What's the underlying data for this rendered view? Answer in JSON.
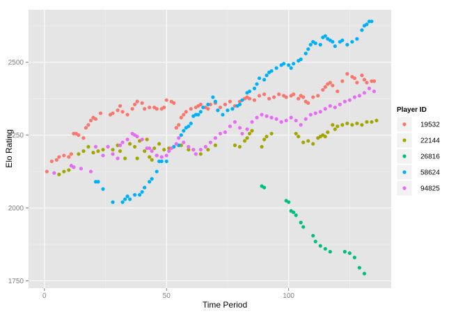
{
  "chart_data": {
    "type": "scatter",
    "title": "",
    "xlabel": "Time Period",
    "ylabel": "Elo Rating",
    "xlim": [
      -6.5,
      142
    ],
    "ylim": [
      1725,
      2680
    ],
    "xticks": [
      0,
      50,
      100
    ],
    "yticks": [
      1750,
      2000,
      2250,
      2500
    ],
    "grid": true,
    "legend": {
      "title": "Player ID",
      "position": "right"
    },
    "series": [
      {
        "name": "19532",
        "color": "#F8766D",
        "points": [
          [
            1,
            2125
          ],
          [
            3,
            2160
          ],
          [
            5,
            2165
          ],
          [
            6,
            2175
          ],
          [
            8,
            2180
          ],
          [
            10,
            2175
          ],
          [
            11,
            2185
          ],
          [
            12,
            2255
          ],
          [
            13,
            2255
          ],
          [
            14,
            2250
          ],
          [
            16,
            2240
          ],
          [
            17,
            2275
          ],
          [
            18,
            2285
          ],
          [
            19,
            2300
          ],
          [
            20,
            2310
          ],
          [
            21,
            2305
          ],
          [
            23,
            2325
          ],
          [
            27,
            2320
          ],
          [
            28,
            2325
          ],
          [
            30,
            2335
          ],
          [
            31,
            2350
          ],
          [
            32,
            2330
          ],
          [
            34,
            2320
          ],
          [
            36,
            2340
          ],
          [
            37,
            2355
          ],
          [
            38,
            2365
          ],
          [
            40,
            2360
          ],
          [
            41,
            2340
          ],
          [
            43,
            2345
          ],
          [
            45,
            2345
          ],
          [
            46,
            2340
          ],
          [
            48,
            2340
          ],
          [
            49,
            2345
          ],
          [
            50,
            2370
          ],
          [
            52,
            2365
          ],
          [
            53,
            2360
          ],
          [
            54,
            2275
          ],
          [
            55,
            2285
          ],
          [
            56,
            2310
          ],
          [
            57,
            2320
          ],
          [
            58,
            2330
          ],
          [
            60,
            2340
          ],
          [
            62,
            2345
          ],
          [
            63,
            2350
          ],
          [
            64,
            2355
          ],
          [
            66,
            2345
          ],
          [
            67,
            2340
          ],
          [
            68,
            2355
          ],
          [
            70,
            2360
          ],
          [
            72,
            2345
          ],
          [
            74,
            2355
          ],
          [
            76,
            2365
          ],
          [
            78,
            2350
          ],
          [
            80,
            2365
          ],
          [
            82,
            2375
          ],
          [
            83,
            2380
          ],
          [
            84,
            2375
          ],
          [
            86,
            2370
          ],
          [
            88,
            2385
          ],
          [
            90,
            2390
          ],
          [
            92,
            2375
          ],
          [
            94,
            2380
          ],
          [
            96,
            2390
          ],
          [
            98,
            2385
          ],
          [
            99,
            2380
          ],
          [
            101,
            2385
          ],
          [
            102,
            2390
          ],
          [
            104,
            2375
          ],
          [
            105,
            2385
          ],
          [
            106,
            2380
          ],
          [
            107,
            2365
          ],
          [
            108,
            2360
          ],
          [
            110,
            2380
          ],
          [
            112,
            2385
          ],
          [
            114,
            2405
          ],
          [
            115,
            2415
          ],
          [
            116,
            2425
          ],
          [
            117,
            2430
          ],
          [
            118,
            2420
          ],
          [
            120,
            2400
          ],
          [
            122,
            2435
          ],
          [
            124,
            2460
          ],
          [
            126,
            2450
          ],
          [
            127,
            2445
          ],
          [
            128,
            2430
          ],
          [
            130,
            2455
          ],
          [
            131,
            2440
          ],
          [
            132,
            2430
          ],
          [
            134,
            2435
          ],
          [
            135,
            2435
          ]
        ]
      },
      {
        "name": "22144",
        "color": "#A3A500",
        "points": [
          [
            6,
            2115
          ],
          [
            8,
            2125
          ],
          [
            10,
            2130
          ],
          [
            12,
            2140
          ],
          [
            14,
            2185
          ],
          [
            16,
            2195
          ],
          [
            18,
            2210
          ],
          [
            20,
            2190
          ],
          [
            22,
            2195
          ],
          [
            24,
            2200
          ],
          [
            26,
            2210
          ],
          [
            28,
            2200
          ],
          [
            30,
            2215
          ],
          [
            31,
            2195
          ],
          [
            33,
            2170
          ],
          [
            35,
            2220
          ],
          [
            37,
            2210
          ],
          [
            38,
            2170
          ],
          [
            39,
            2230
          ],
          [
            41,
            2195
          ],
          [
            42,
            2235
          ],
          [
            43,
            2175
          ],
          [
            44,
            2165
          ],
          [
            45,
            2205
          ],
          [
            46,
            2180
          ],
          [
            47,
            2220
          ],
          [
            49,
            2200
          ],
          [
            51,
            2205
          ],
          [
            56,
            2215
          ],
          [
            59,
            2200
          ],
          [
            61,
            2200
          ],
          [
            64,
            2185
          ],
          [
            67,
            2200
          ],
          [
            70,
            2215
          ],
          [
            78,
            2215
          ],
          [
            80,
            2210
          ],
          [
            82,
            2230
          ],
          [
            83,
            2240
          ],
          [
            84,
            2255
          ],
          [
            85,
            2265
          ],
          [
            89,
            2210
          ],
          [
            90,
            2235
          ],
          [
            91,
            2245
          ],
          [
            93,
            2255
          ],
          [
            103,
            2255
          ],
          [
            104,
            2245
          ],
          [
            106,
            2225
          ],
          [
            108,
            2230
          ],
          [
            110,
            2220
          ],
          [
            112,
            2240
          ],
          [
            113,
            2245
          ],
          [
            114,
            2250
          ],
          [
            115,
            2245
          ],
          [
            116,
            2260
          ],
          [
            118,
            2285
          ],
          [
            119,
            2270
          ],
          [
            120,
            2280
          ],
          [
            122,
            2285
          ],
          [
            124,
            2290
          ],
          [
            126,
            2285
          ],
          [
            128,
            2290
          ],
          [
            130,
            2285
          ],
          [
            132,
            2295
          ],
          [
            134,
            2295
          ],
          [
            136,
            2300
          ]
        ]
      },
      {
        "name": "26816",
        "color": "#00BF7D",
        "points": [
          [
            89,
            2075
          ],
          [
            90,
            2070
          ],
          [
            99,
            2025
          ],
          [
            100,
            2020
          ],
          [
            101,
            1990
          ],
          [
            102,
            1985
          ],
          [
            103,
            1975
          ],
          [
            105,
            1950
          ],
          [
            106,
            1935
          ],
          [
            110,
            1905
          ],
          [
            111,
            1885
          ],
          [
            113,
            1870
          ],
          [
            115,
            1860
          ],
          [
            117,
            1850
          ],
          [
            123,
            1850
          ],
          [
            125,
            1845
          ],
          [
            127,
            1830
          ],
          [
            129,
            1795
          ],
          [
            131,
            1775
          ]
        ]
      },
      {
        "name": "58624",
        "color": "#00B0F6",
        "points": [
          [
            21,
            2090
          ],
          [
            22,
            2090
          ],
          [
            24,
            2065
          ],
          [
            28,
            2020
          ],
          [
            32,
            2020
          ],
          [
            33,
            2030
          ],
          [
            34,
            2040
          ],
          [
            35,
            2030
          ],
          [
            37,
            2045
          ],
          [
            39,
            2045
          ],
          [
            40,
            2055
          ],
          [
            41,
            2070
          ],
          [
            43,
            2090
          ],
          [
            44,
            2100
          ],
          [
            46,
            2125
          ],
          [
            47,
            2160
          ],
          [
            48,
            2160
          ],
          [
            50,
            2160
          ],
          [
            53,
            2210
          ],
          [
            55,
            2215
          ],
          [
            56,
            2250
          ],
          [
            57,
            2265
          ],
          [
            58,
            2275
          ],
          [
            59,
            2280
          ],
          [
            60,
            2290
          ],
          [
            61,
            2315
          ],
          [
            62,
            2320
          ],
          [
            63,
            2320
          ],
          [
            64,
            2330
          ],
          [
            65,
            2345
          ],
          [
            67,
            2355
          ],
          [
            69,
            2380
          ],
          [
            70,
            2365
          ],
          [
            71,
            2335
          ],
          [
            73,
            2320
          ],
          [
            75,
            2335
          ],
          [
            77,
            2340
          ],
          [
            79,
            2350
          ],
          [
            80,
            2355
          ],
          [
            81,
            2370
          ],
          [
            83,
            2395
          ],
          [
            84,
            2400
          ],
          [
            86,
            2410
          ],
          [
            87,
            2425
          ],
          [
            88,
            2445
          ],
          [
            90,
            2440
          ],
          [
            91,
            2455
          ],
          [
            92,
            2465
          ],
          [
            93,
            2470
          ],
          [
            95,
            2480
          ],
          [
            97,
            2490
          ],
          [
            98,
            2495
          ],
          [
            100,
            2490
          ],
          [
            101,
            2480
          ],
          [
            102,
            2495
          ],
          [
            104,
            2505
          ],
          [
            105,
            2510
          ],
          [
            107,
            2530
          ],
          [
            108,
            2545
          ],
          [
            109,
            2560
          ],
          [
            110,
            2570
          ],
          [
            111,
            2565
          ],
          [
            113,
            2560
          ],
          [
            114,
            2585
          ],
          [
            115,
            2590
          ],
          [
            116,
            2580
          ],
          [
            117,
            2575
          ],
          [
            118,
            2570
          ],
          [
            119,
            2555
          ],
          [
            121,
            2570
          ],
          [
            122,
            2575
          ],
          [
            124,
            2560
          ],
          [
            126,
            2570
          ],
          [
            128,
            2580
          ],
          [
            130,
            2610
          ],
          [
            131,
            2625
          ],
          [
            132,
            2630
          ],
          [
            133,
            2640
          ],
          [
            134,
            2640
          ]
        ]
      },
      {
        "name": "94825",
        "color": "#E76BF3",
        "points": [
          [
            4,
            2120
          ],
          [
            11,
            2145
          ],
          [
            12,
            2140
          ],
          [
            15,
            2135
          ],
          [
            19,
            2125
          ],
          [
            21,
            2210
          ],
          [
            24,
            2180
          ],
          [
            26,
            2210
          ],
          [
            28,
            2185
          ],
          [
            30,
            2170
          ],
          [
            31,
            2215
          ],
          [
            32,
            2225
          ],
          [
            34,
            2235
          ],
          [
            36,
            2255
          ],
          [
            37,
            2250
          ],
          [
            38,
            2245
          ],
          [
            40,
            2235
          ],
          [
            42,
            2205
          ],
          [
            43,
            2205
          ],
          [
            44,
            2195
          ],
          [
            46,
            2180
          ],
          [
            48,
            2175
          ],
          [
            50,
            2180
          ],
          [
            51,
            2195
          ],
          [
            52,
            2205
          ],
          [
            54,
            2220
          ],
          [
            55,
            2240
          ],
          [
            57,
            2225
          ],
          [
            59,
            2210
          ],
          [
            61,
            2200
          ],
          [
            62,
            2185
          ],
          [
            64,
            2200
          ],
          [
            66,
            2210
          ],
          [
            68,
            2225
          ],
          [
            70,
            2240
          ],
          [
            72,
            2255
          ],
          [
            74,
            2260
          ],
          [
            76,
            2280
          ],
          [
            78,
            2295
          ],
          [
            80,
            2275
          ],
          [
            81,
            2255
          ],
          [
            83,
            2270
          ],
          [
            85,
            2295
          ],
          [
            87,
            2310
          ],
          [
            89,
            2320
          ],
          [
            91,
            2315
          ],
          [
            93,
            2310
          ],
          [
            95,
            2305
          ],
          [
            97,
            2295
          ],
          [
            99,
            2300
          ],
          [
            101,
            2310
          ],
          [
            103,
            2300
          ],
          [
            105,
            2285
          ],
          [
            107,
            2305
          ],
          [
            109,
            2320
          ],
          [
            111,
            2325
          ],
          [
            113,
            2330
          ],
          [
            115,
            2340
          ],
          [
            117,
            2350
          ],
          [
            119,
            2345
          ],
          [
            121,
            2355
          ],
          [
            123,
            2365
          ],
          [
            125,
            2370
          ],
          [
            127,
            2380
          ],
          [
            129,
            2385
          ],
          [
            131,
            2395
          ],
          [
            133,
            2410
          ],
          [
            135,
            2400
          ]
        ]
      }
    ]
  }
}
